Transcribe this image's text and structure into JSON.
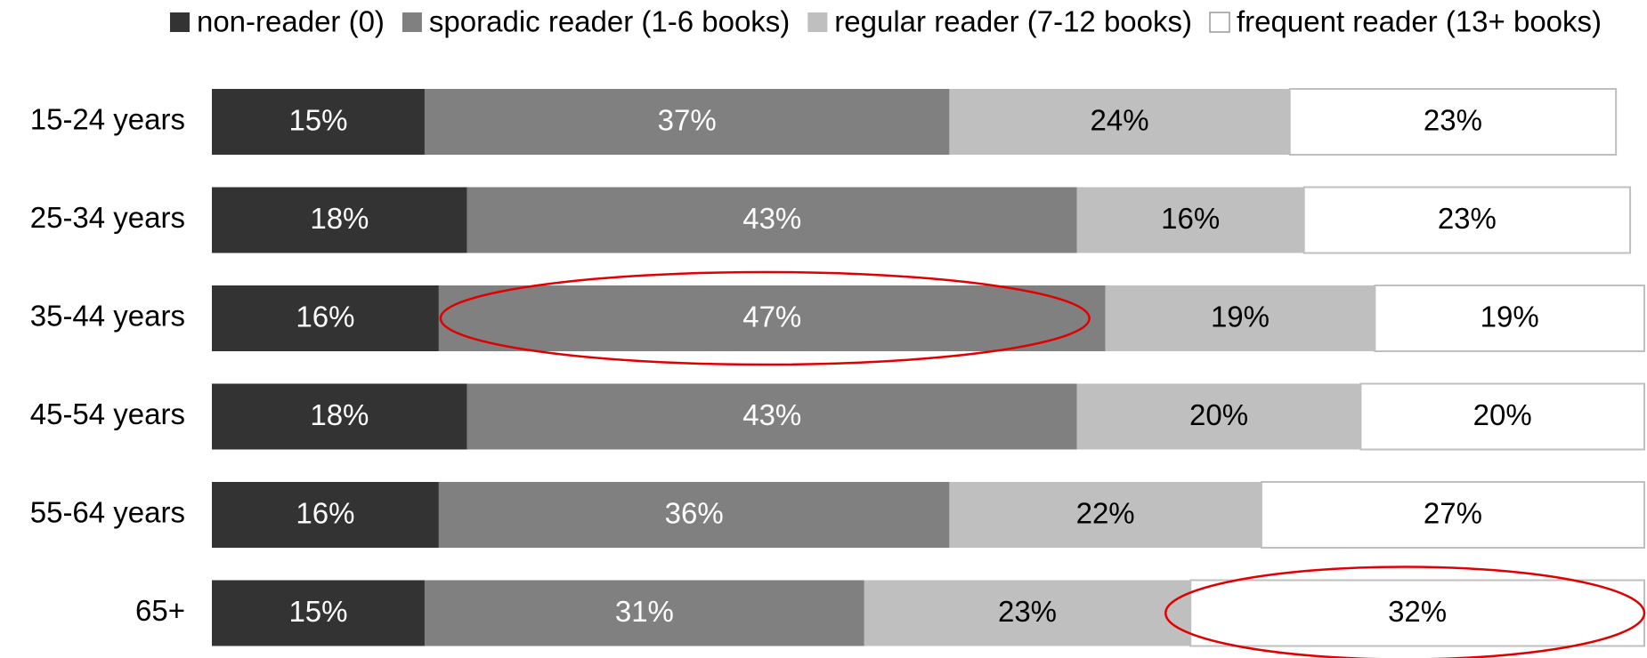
{
  "chart_data": {
    "type": "stacked-bar-horizontal",
    "categories": [
      "15-24 years",
      "25-34 years",
      "35-44 years",
      "45-54 years",
      "55-64 years",
      "65+"
    ],
    "series": [
      {
        "name": "non-reader (0)",
        "color": "#333333",
        "values": [
          15,
          18,
          16,
          18,
          16,
          15
        ],
        "value_labels": [
          "15%",
          "18%",
          "16%",
          "18%",
          "16%",
          "15%"
        ]
      },
      {
        "name": "sporadic reader (1-6 books)",
        "color": "#808080",
        "values": [
          37,
          43,
          47,
          43,
          36,
          31
        ],
        "value_labels": [
          "37%",
          "43%",
          "47%",
          "43%",
          "36%",
          "31%"
        ]
      },
      {
        "name": "regular reader (7-12 books)",
        "color": "#bfbfbf",
        "values": [
          24,
          16,
          19,
          20,
          22,
          23
        ],
        "value_labels": [
          "24%",
          "16%",
          "19%",
          "20%",
          "22%",
          "23%"
        ]
      },
      {
        "name": "frequent reader (13+ books)",
        "color": "#ffffff",
        "values": [
          23,
          23,
          19,
          20,
          27,
          32
        ],
        "value_labels": [
          "23%",
          "23%",
          "19%",
          "20%",
          "27%",
          "32%"
        ]
      }
    ],
    "legend": "top"
  }
}
